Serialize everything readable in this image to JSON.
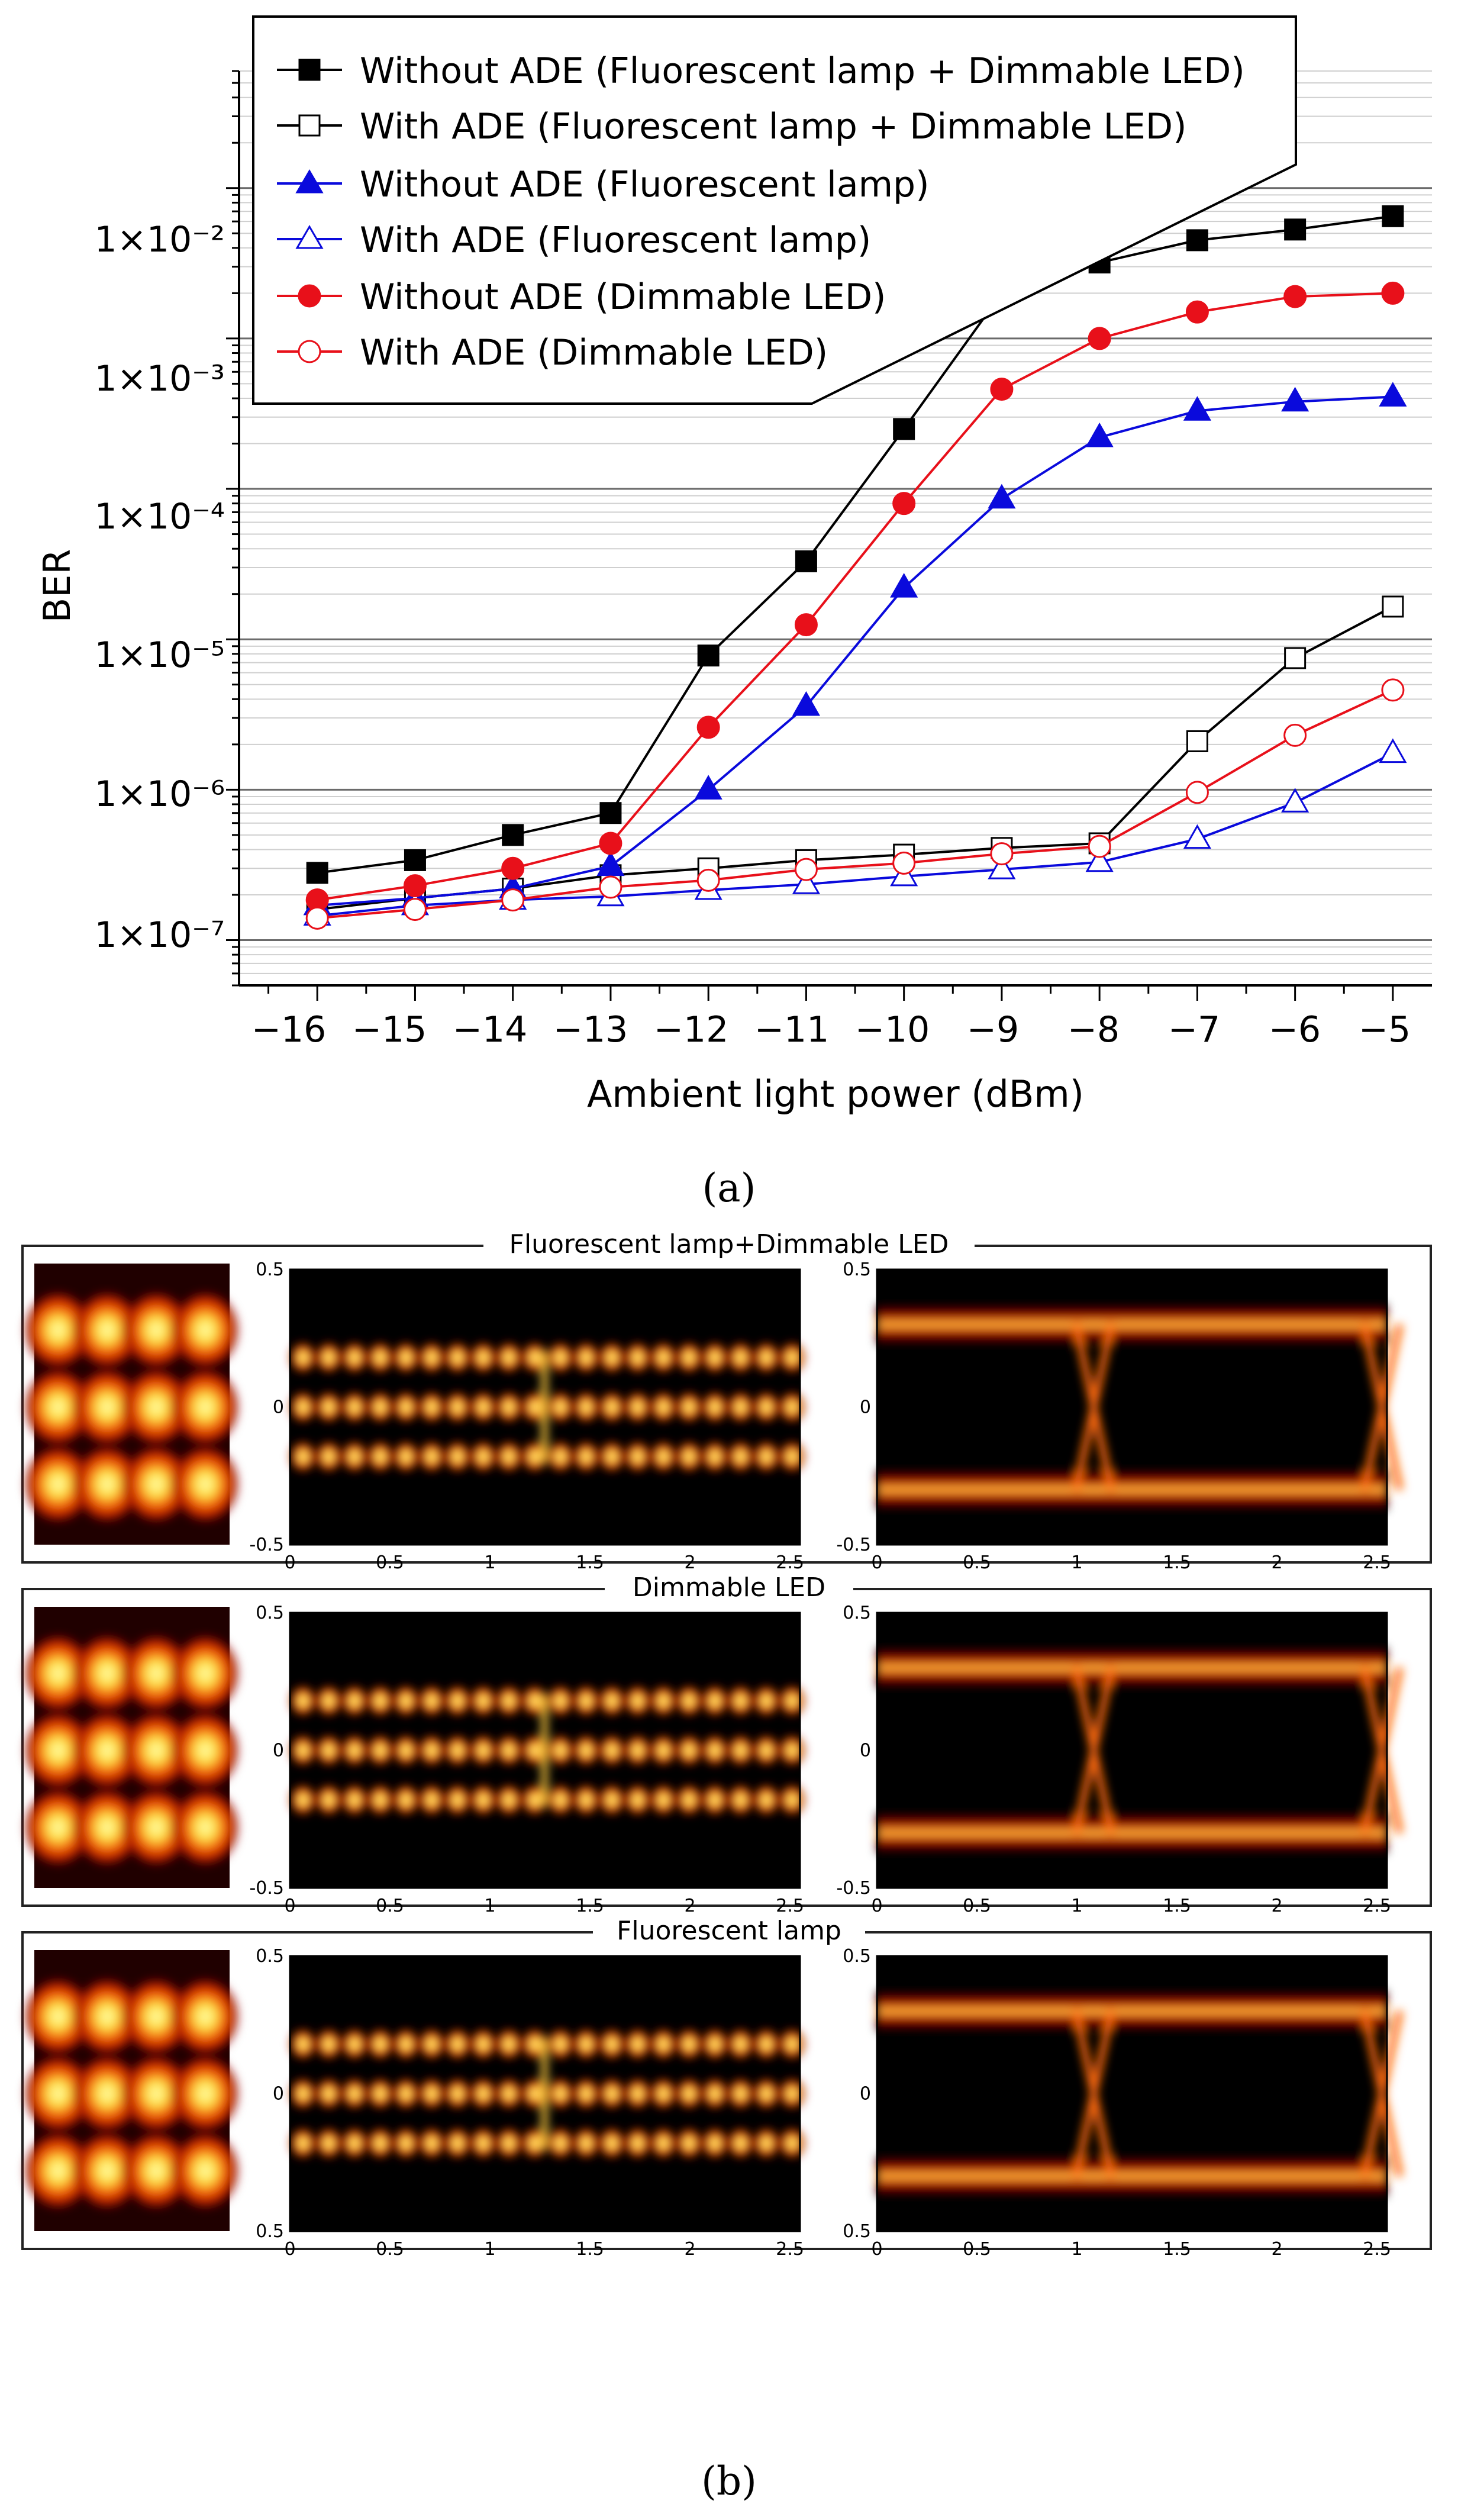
{
  "chart_data": [
    {
      "type": "line",
      "panel_label": "(a)",
      "xlabel": "Ambient light power (dBm)",
      "ylabel": "BER",
      "yscale": "log",
      "x": [
        -16,
        -15,
        -14,
        -13,
        -12,
        -11,
        -10,
        -9,
        -8,
        -7,
        -6,
        -5
      ],
      "xlim": [
        -16.8,
        -4.6
      ],
      "ylim": [
        5e-08,
        0.06
      ],
      "x_tick_labels": [
        "−16",
        "−15",
        "−14",
        "−13",
        "−12",
        "−11",
        "−10",
        "−9",
        "−8",
        "−7",
        "−6",
        "−5"
      ],
      "y_ticks": [
        1e-07,
        1e-06,
        1e-05,
        0.0001,
        0.001,
        0.01
      ],
      "y_tick_labels": [
        "1×10⁻⁷",
        "1×10⁻⁶",
        "1×10⁻⁵",
        "1×10⁻⁴",
        "1×10⁻³",
        "1×10⁻²"
      ],
      "grid": true,
      "legend_position": "top-left",
      "series": [
        {
          "name": "Without ADE (Fluorescent lamp + Dimmable LED)",
          "color": "#000000",
          "marker": "square",
          "filled": true,
          "values": [
            2.8e-07,
            3.4e-07,
            5e-07,
            7e-07,
            7.8e-06,
            3.3e-05,
            0.00025,
            0.002,
            0.0032,
            0.0045,
            0.0053,
            0.0065
          ]
        },
        {
          "name": "With ADE (Fluorescent lamp + Dimmable LED)",
          "color": "#000000",
          "marker": "square",
          "filled": false,
          "values": [
            1.6e-07,
            1.9e-07,
            2.2e-07,
            2.7e-07,
            3e-07,
            3.4e-07,
            3.7e-07,
            4.1e-07,
            4.4e-07,
            2.1e-06,
            7.5e-06,
            1.65e-05
          ]
        },
        {
          "name": "Without ADE (Fluorescent lamp)",
          "color": "#0a0adc",
          "marker": "triangle",
          "filled": true,
          "values": [
            1.7e-07,
            1.9e-07,
            2.2e-07,
            3.1e-07,
            1e-06,
            3.6e-06,
            2.2e-05,
            8.6e-05,
            0.00022,
            0.00033,
            0.00038,
            0.00041
          ]
        },
        {
          "name": "With ADE (Fluorescent lamp)",
          "color": "#0a0adc",
          "marker": "triangle",
          "filled": false,
          "values": [
            1.45e-07,
            1.7e-07,
            1.85e-07,
            1.95e-07,
            2.15e-07,
            2.35e-07,
            2.65e-07,
            2.95e-07,
            3.3e-07,
            4.7e-07,
            8.2e-07,
            1.75e-06
          ]
        },
        {
          "name": "Without ADE (Dimmable LED)",
          "color": "#e8101a",
          "marker": "circle",
          "filled": true,
          "values": [
            1.85e-07,
            2.3e-07,
            3e-07,
            4.4e-07,
            2.6e-06,
            1.25e-05,
            8e-05,
            0.00046,
            0.001,
            0.0015,
            0.0019,
            0.002
          ]
        },
        {
          "name": "With ADE (Dimmable LED)",
          "color": "#e8101a",
          "marker": "circle",
          "filled": false,
          "values": [
            1.4e-07,
            1.6e-07,
            1.85e-07,
            2.25e-07,
            2.5e-07,
            2.95e-07,
            3.25e-07,
            3.75e-07,
            4.2e-07,
            9.6e-07,
            2.3e-06,
            4.6e-06
          ]
        }
      ]
    },
    {
      "type": "heatmap",
      "panel_label": "(b)",
      "description_rows": [
        {
          "title": "Fluorescent lamp+Dimmable LED"
        },
        {
          "title": "Dimmable LED"
        },
        {
          "title": "Fluorescent lamp"
        }
      ],
      "x_tick_labels": [
        "0",
        "0.5",
        "1",
        "1.5",
        "2",
        "2.5"
      ],
      "xlim": [
        0,
        2.55
      ],
      "ylim": [
        -0.5,
        0.5
      ],
      "colormap": [
        "#000000",
        "#5a0000",
        "#b01000",
        "#e85000",
        "#ffd000",
        "#ffffa0"
      ]
    }
  ]
}
